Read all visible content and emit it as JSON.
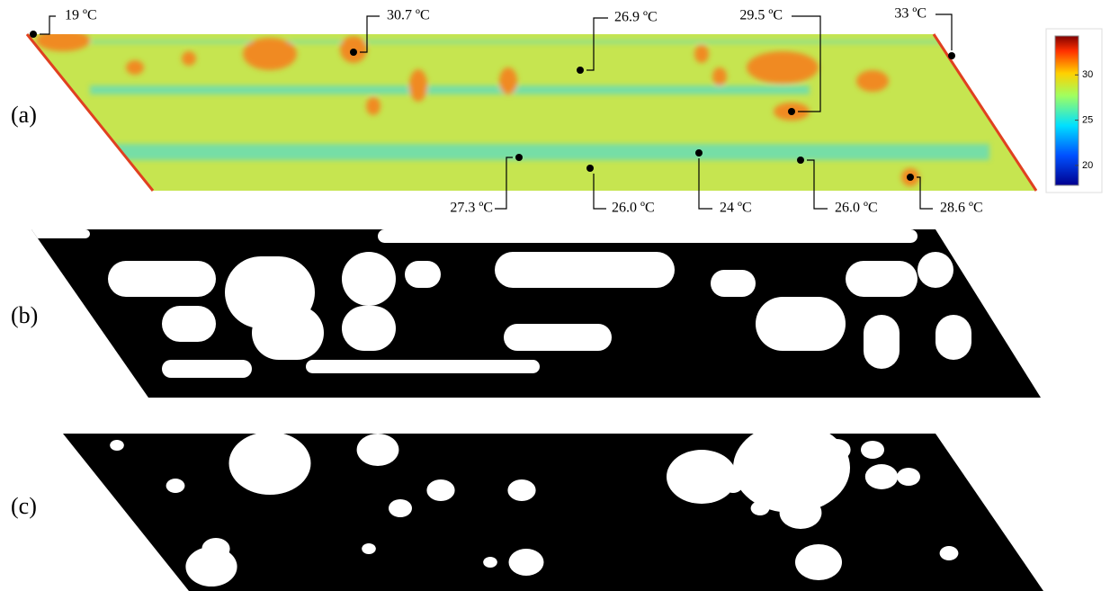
{
  "panels": [
    {
      "label": "(a)"
    },
    {
      "label": "(b)"
    },
    {
      "label": "(c)"
    }
  ],
  "annotations": [
    "19 ºC",
    "30.7 ºC",
    "26.9 ºC",
    "29.5 ºC",
    "33 ºC",
    "27.3 ºC",
    "26.0 ºC",
    "24 ºC",
    "26.0 ºC",
    "28.6 ºC"
  ],
  "colorbar": {
    "range": [
      17.8,
      34.3
    ],
    "ticks": [
      20,
      25,
      30
    ]
  }
}
